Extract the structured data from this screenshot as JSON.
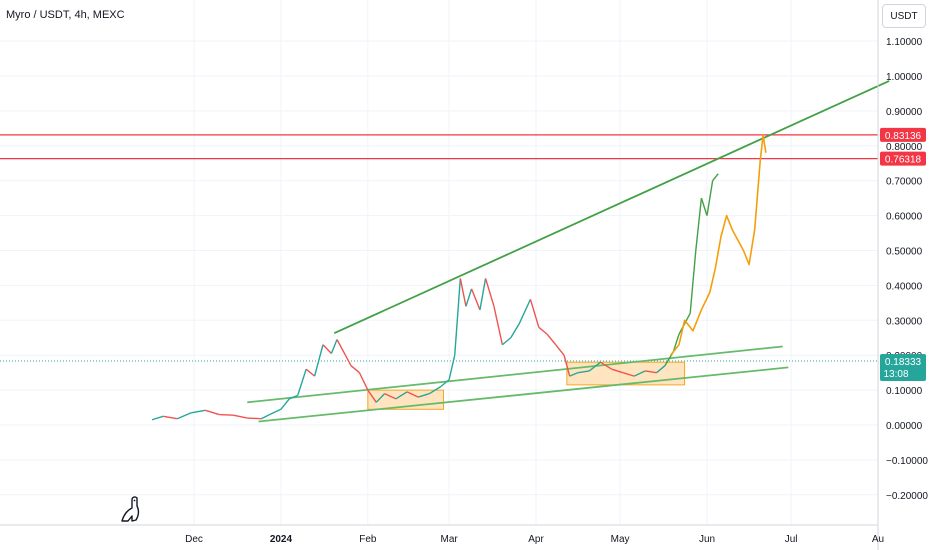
{
  "header": {
    "title": "Myro / USDT, 4h, MEXC",
    "currency_button": "USDT"
  },
  "chart_data": {
    "type": "line",
    "title": "Myro / USDT, 4h, MEXC",
    "xlabel": "",
    "ylabel": "",
    "ylim": [
      -0.25,
      1.14
    ],
    "y_ticks": [
      {
        "value": 1.1,
        "label": "1.10000"
      },
      {
        "value": 1.0,
        "label": "1.00000"
      },
      {
        "value": 0.9,
        "label": "0.90000"
      },
      {
        "value": 0.8,
        "label": "0.80000"
      },
      {
        "value": 0.7,
        "label": "0.70000"
      },
      {
        "value": 0.6,
        "label": "0.60000"
      },
      {
        "value": 0.5,
        "label": "0.50000"
      },
      {
        "value": 0.4,
        "label": "0.40000"
      },
      {
        "value": 0.3,
        "label": "0.30000"
      },
      {
        "value": 0.2,
        "label": "0.20000"
      },
      {
        "value": 0.1,
        "label": "0.10000"
      },
      {
        "value": 0.0,
        "label": "0.00000"
      },
      {
        "value": -0.1,
        "label": "−0.10000"
      },
      {
        "value": -0.2,
        "label": "−0.20000"
      }
    ],
    "x_ticks": [
      {
        "date": "2023-12-01",
        "label": "Dec",
        "bold": false
      },
      {
        "date": "2024-01-01",
        "label": "2024",
        "bold": true
      },
      {
        "date": "2024-02-01",
        "label": "Feb",
        "bold": false
      },
      {
        "date": "2024-03-01",
        "label": "Mar",
        "bold": false
      },
      {
        "date": "2024-04-01",
        "label": "Apr",
        "bold": false
      },
      {
        "date": "2024-05-01",
        "label": "May",
        "bold": false
      },
      {
        "date": "2024-06-01",
        "label": "Jun",
        "bold": false
      },
      {
        "date": "2024-07-01",
        "label": "Jul",
        "bold": false
      },
      {
        "date": "2024-08-01",
        "label": "Au",
        "bold": false
      }
    ],
    "price_series": {
      "name": "",
      "points": [
        [
          "2023-11-16",
          0.015
        ],
        [
          "2023-11-20",
          0.025
        ],
        [
          "2023-11-25",
          0.018
        ],
        [
          "2023-11-30",
          0.035
        ],
        [
          "2023-12-05",
          0.042
        ],
        [
          "2023-12-10",
          0.03
        ],
        [
          "2023-12-15",
          0.028
        ],
        [
          "2023-12-20",
          0.02
        ],
        [
          "2023-12-25",
          0.018
        ],
        [
          "2023-12-28",
          0.03
        ],
        [
          "2024-01-01",
          0.045
        ],
        [
          "2024-01-04",
          0.075
        ],
        [
          "2024-01-07",
          0.085
        ],
        [
          "2024-01-10",
          0.16
        ],
        [
          "2024-01-13",
          0.14
        ],
        [
          "2024-01-16",
          0.23
        ],
        [
          "2024-01-19",
          0.205
        ],
        [
          "2024-01-21",
          0.245
        ],
        [
          "2024-01-24",
          0.2
        ],
        [
          "2024-01-26",
          0.17
        ],
        [
          "2024-01-29",
          0.15
        ],
        [
          "2024-02-01",
          0.1
        ],
        [
          "2024-02-04",
          0.065
        ],
        [
          "2024-02-07",
          0.09
        ],
        [
          "2024-02-11",
          0.075
        ],
        [
          "2024-02-15",
          0.095
        ],
        [
          "2024-02-19",
          0.08
        ],
        [
          "2024-02-23",
          0.09
        ],
        [
          "2024-02-27",
          0.11
        ],
        [
          "2024-03-01",
          0.13
        ],
        [
          "2024-03-03",
          0.2
        ],
        [
          "2024-03-05",
          0.42
        ],
        [
          "2024-03-07",
          0.34
        ],
        [
          "2024-03-09",
          0.39
        ],
        [
          "2024-03-12",
          0.33
        ],
        [
          "2024-03-14",
          0.42
        ],
        [
          "2024-03-17",
          0.34
        ],
        [
          "2024-03-20",
          0.23
        ],
        [
          "2024-03-23",
          0.25
        ],
        [
          "2024-03-26",
          0.29
        ],
        [
          "2024-03-30",
          0.36
        ],
        [
          "2024-04-02",
          0.28
        ],
        [
          "2024-04-05",
          0.26
        ],
        [
          "2024-04-08",
          0.23
        ],
        [
          "2024-04-11",
          0.2
        ],
        [
          "2024-04-13",
          0.14
        ],
        [
          "2024-04-16",
          0.15
        ],
        [
          "2024-04-20",
          0.155
        ],
        [
          "2024-04-24",
          0.18
        ],
        [
          "2024-04-28",
          0.16
        ],
        [
          "2024-05-02",
          0.15
        ],
        [
          "2024-05-06",
          0.14
        ],
        [
          "2024-05-10",
          0.155
        ],
        [
          "2024-05-14",
          0.15
        ],
        [
          "2024-05-17",
          0.17
        ],
        [
          "2024-05-20",
          0.21
        ],
        [
          "2024-05-22",
          0.26
        ],
        [
          "2024-05-24",
          0.29
        ],
        [
          "2024-05-26",
          0.32
        ],
        [
          "2024-05-28",
          0.5
        ],
        [
          "2024-05-30",
          0.65
        ],
        [
          "2024-06-01",
          0.6
        ],
        [
          "2024-06-03",
          0.7
        ],
        [
          "2024-06-05",
          0.72
        ]
      ]
    },
    "projection_series": {
      "name": "",
      "points": [
        [
          "2024-05-19",
          0.2
        ],
        [
          "2024-05-22",
          0.23
        ],
        [
          "2024-05-24",
          0.3
        ],
        [
          "2024-05-27",
          0.27
        ],
        [
          "2024-05-30",
          0.33
        ],
        [
          "2024-06-02",
          0.38
        ],
        [
          "2024-06-04",
          0.45
        ],
        [
          "2024-06-06",
          0.54
        ],
        [
          "2024-06-08",
          0.6
        ],
        [
          "2024-06-10",
          0.56
        ],
        [
          "2024-06-12",
          0.53
        ],
        [
          "2024-06-14",
          0.5
        ],
        [
          "2024-06-16",
          0.46
        ],
        [
          "2024-06-18",
          0.56
        ],
        [
          "2024-06-20",
          0.76
        ],
        [
          "2024-06-21",
          0.83
        ],
        [
          "2024-06-22",
          0.78
        ]
      ]
    },
    "trend_lines": [
      {
        "name": "upper-trend-line",
        "color": "#43a047",
        "start": [
          "2024-01-20",
          0.263
        ],
        "end": [
          "2024-08-05",
          0.986
        ]
      },
      {
        "name": "channel-upper-line",
        "color": "#66bb6a",
        "start": [
          "2023-12-20",
          0.065
        ],
        "end": [
          "2024-06-28",
          0.225
        ]
      },
      {
        "name": "channel-lower-line",
        "color": "#66bb6a",
        "start": [
          "2023-12-24",
          0.01
        ],
        "end": [
          "2024-06-30",
          0.165
        ]
      }
    ],
    "ranges": [
      {
        "name": "consolidation-box-1",
        "x0": "2024-02-01",
        "x1": "2024-02-28",
        "y0": 0.045,
        "y1": 0.1
      },
      {
        "name": "consolidation-box-2",
        "x0": "2024-04-12",
        "x1": "2024-05-24",
        "y0": 0.115,
        "y1": 0.18
      }
    ],
    "horizontal_levels": [
      {
        "value": 0.83136,
        "label": "0.83136",
        "color": "#f23645"
      },
      {
        "value": 0.76318,
        "label": "0.76318",
        "color": "#f23645"
      }
    ],
    "current_price": {
      "value": 0.18333,
      "label": "0.18333",
      "countdown": "13:08",
      "color": "#26a69a"
    },
    "grid": true,
    "legend": "none"
  }
}
